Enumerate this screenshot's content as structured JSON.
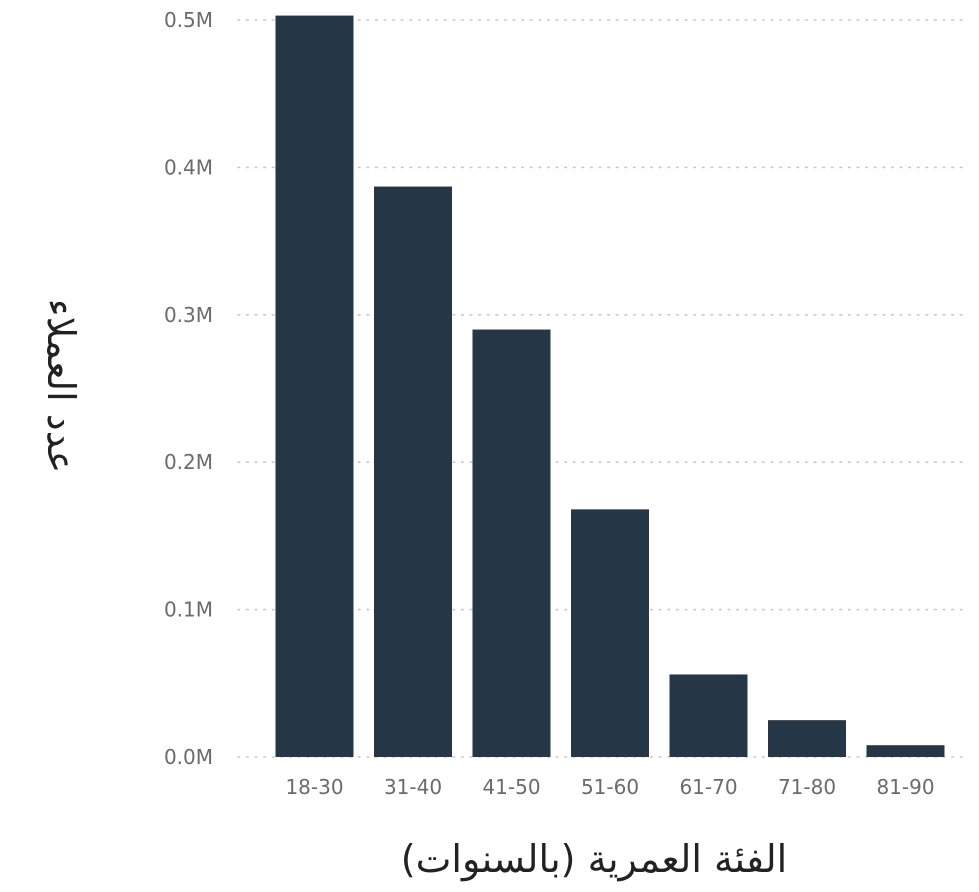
{
  "chart_data": {
    "type": "bar",
    "categories": [
      "18-30",
      "31-40",
      "41-50",
      "51-60",
      "61-70",
      "71-80",
      "81-90"
    ],
    "series": [
      {
        "values": [
          503000,
          387000,
          290000,
          168000,
          56000,
          25000,
          8000
        ]
      }
    ],
    "title": "",
    "xlabel": "الفئة العمرية (بالسنوات)",
    "ylabel": "عدد العملاء",
    "ylim": [
      0,
      500000
    ],
    "y_ticks": [
      {
        "value": 0,
        "label": "0.0M"
      },
      {
        "value": 100000,
        "label": "0.1M"
      },
      {
        "value": 200000,
        "label": "0.2M"
      },
      {
        "value": 300000,
        "label": "0.3M"
      },
      {
        "value": 400000,
        "label": "0.4M"
      },
      {
        "value": 500000,
        "label": "0.5M"
      }
    ],
    "grid": "horizontal dotted",
    "legend": "none",
    "colors": {
      "bar": "#253646",
      "grid": "#c8c8c8",
      "tick_text": "#6b6b6b",
      "axis_title": "#222222"
    }
  }
}
